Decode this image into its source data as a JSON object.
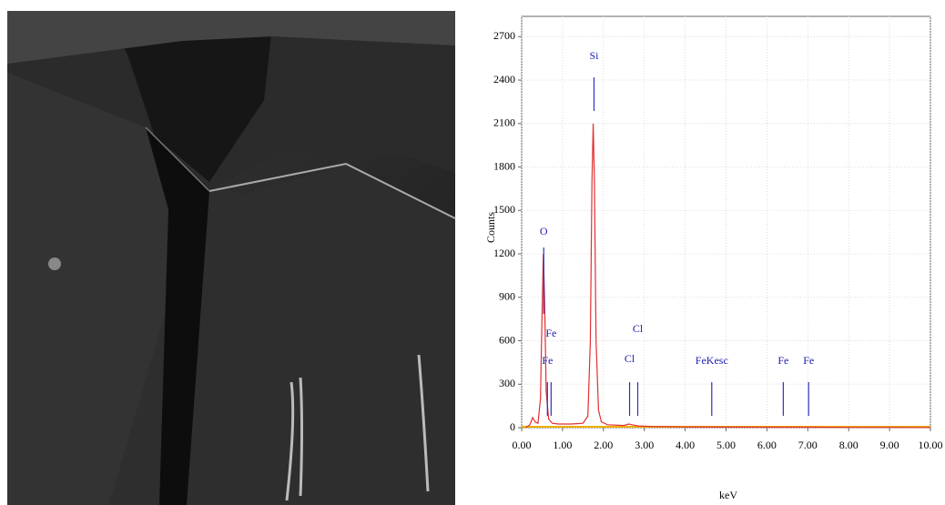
{
  "chart_data": {
    "type": "line",
    "x_label": "keV",
    "y_label": "Counts",
    "xlim": [
      0,
      10
    ],
    "ylim": [
      0,
      2840
    ],
    "xticks": [
      {
        "value": 0,
        "label": "0.00"
      },
      {
        "value": 1,
        "label": "1.00"
      },
      {
        "value": 2,
        "label": "2.00"
      },
      {
        "value": 3,
        "label": "3.00"
      },
      {
        "value": 4,
        "label": "4.00"
      },
      {
        "value": 5,
        "label": "5.00"
      },
      {
        "value": 6,
        "label": "6.00"
      },
      {
        "value": 7,
        "label": "7.00"
      },
      {
        "value": 8,
        "label": "8.00"
      },
      {
        "value": 9,
        "label": "9.00"
      },
      {
        "value": 10,
        "label": "10.00"
      }
    ],
    "yticks": [
      0,
      300,
      600,
      900,
      1200,
      1500,
      1800,
      2100,
      2400,
      2700
    ],
    "series": [
      {
        "color": "#e03030",
        "x": [
          0.1,
          0.2,
          0.27,
          0.33,
          0.4,
          0.46,
          0.5,
          0.53,
          0.56,
          0.6,
          0.66,
          0.75,
          0.9,
          1.2,
          1.5,
          1.62,
          1.68,
          1.72,
          1.75,
          1.78,
          1.82,
          1.88,
          1.95,
          2.1,
          2.5,
          2.62,
          2.7,
          2.85,
          3.2,
          4.0,
          5.0,
          6.0,
          7.0,
          8.0,
          9.0,
          10.0
        ],
        "values": [
          0,
          20,
          70,
          40,
          30,
          200,
          800,
          1200,
          900,
          250,
          60,
          30,
          25,
          25,
          30,
          80,
          600,
          1700,
          2100,
          1700,
          600,
          120,
          40,
          20,
          15,
          25,
          20,
          12,
          8,
          5,
          4,
          3,
          3,
          2,
          2,
          1
        ]
      }
    ],
    "peak_markers": [
      {
        "label": "O",
        "x": 0.54
      },
      {
        "label": "Fe",
        "x": 0.72
      },
      {
        "label": "Fe",
        "x": 0.63
      },
      {
        "label": "Si",
        "x": 1.77
      },
      {
        "label": "Cl",
        "x": 2.84
      },
      {
        "label": "Cl",
        "x": 2.64
      },
      {
        "label": "FeKesc",
        "x": 4.65
      },
      {
        "label": "Fe",
        "x": 6.4
      },
      {
        "label": "Fe",
        "x": 7.02
      }
    ]
  }
}
